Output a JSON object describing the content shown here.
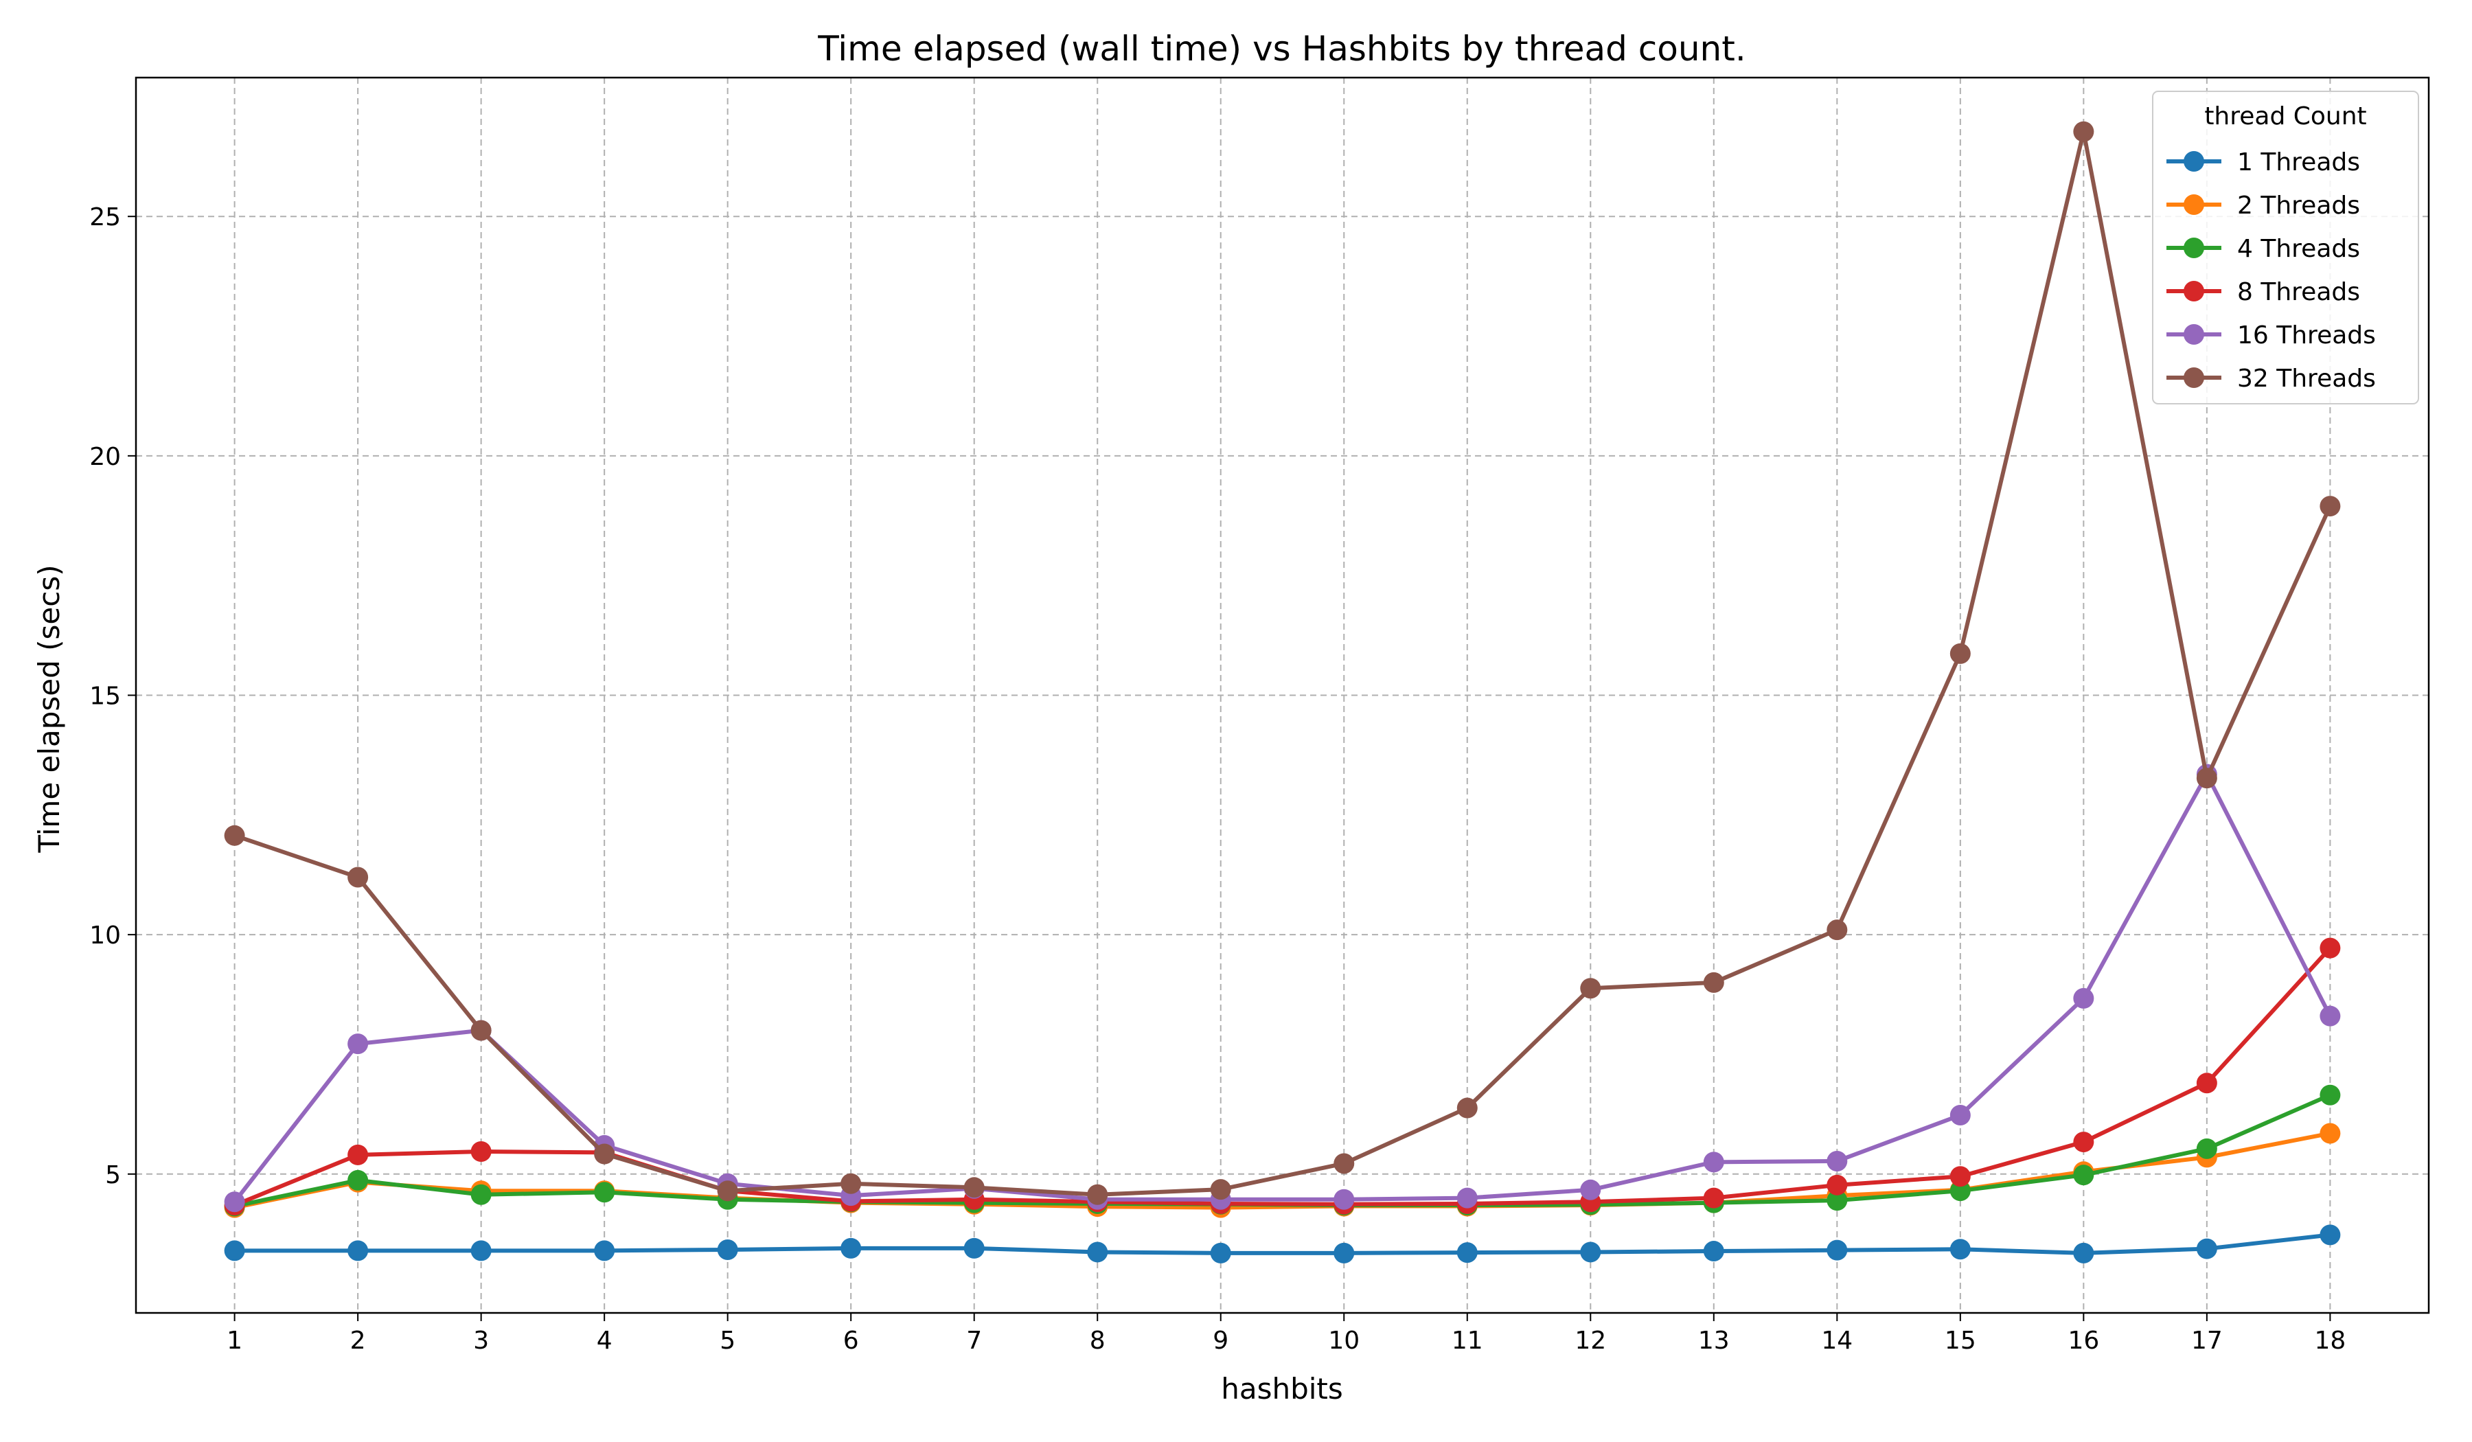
{
  "chart_data": {
    "type": "line",
    "title": "Time elapsed (wall time) vs Hashbits by thread count.",
    "xlabel": "hashbits",
    "ylabel": "Time elapsed (secs)",
    "x": [
      1,
      2,
      3,
      4,
      5,
      6,
      7,
      8,
      9,
      10,
      11,
      12,
      13,
      14,
      15,
      16,
      17,
      18
    ],
    "xlim": [
      0.2,
      18.8
    ],
    "ylim": [
      2.1,
      27.9
    ],
    "yticks": [
      5,
      10,
      15,
      20,
      25
    ],
    "grid": true,
    "legend": {
      "title": "thread Count",
      "placement": "top-right"
    },
    "series": [
      {
        "name": "1 Threads",
        "color": "#1f77b4",
        "values": [
          3.4,
          3.4,
          3.4,
          3.4,
          3.42,
          3.45,
          3.45,
          3.37,
          3.35,
          3.35,
          3.36,
          3.37,
          3.39,
          3.41,
          3.43,
          3.35,
          3.44,
          3.73
        ]
      },
      {
        "name": "2 Threads",
        "color": "#ff7f0e",
        "values": [
          4.3,
          4.83,
          4.65,
          4.65,
          4.5,
          4.4,
          4.37,
          4.32,
          4.3,
          4.33,
          4.33,
          4.35,
          4.4,
          4.55,
          4.67,
          5.05,
          5.35,
          5.85
        ]
      },
      {
        "name": "4 Threads",
        "color": "#2ca02c",
        "values": [
          4.33,
          4.87,
          4.57,
          4.62,
          4.47,
          4.42,
          4.4,
          4.38,
          4.37,
          4.35,
          4.35,
          4.36,
          4.4,
          4.45,
          4.65,
          4.98,
          5.53,
          6.65
        ]
      },
      {
        "name": "8 Threads",
        "color": "#d62728",
        "values": [
          4.35,
          5.4,
          5.47,
          5.45,
          4.65,
          4.43,
          4.47,
          4.42,
          4.38,
          4.37,
          4.38,
          4.42,
          4.5,
          4.77,
          4.95,
          5.67,
          6.9,
          9.72
        ]
      },
      {
        "name": "16 Threads",
        "color": "#9467bd",
        "values": [
          4.42,
          7.72,
          8.0,
          5.6,
          4.8,
          4.55,
          4.7,
          4.47,
          4.47,
          4.47,
          4.5,
          4.67,
          5.25,
          5.27,
          6.23,
          8.67,
          13.35,
          8.3
        ]
      },
      {
        "name": "32 Threads",
        "color": "#8c564b",
        "values": [
          12.07,
          11.2,
          8.0,
          5.42,
          4.65,
          4.8,
          4.72,
          4.57,
          4.68,
          5.22,
          6.38,
          8.88,
          9.0,
          10.1,
          15.87,
          26.77,
          13.27,
          18.95
        ]
      }
    ]
  }
}
